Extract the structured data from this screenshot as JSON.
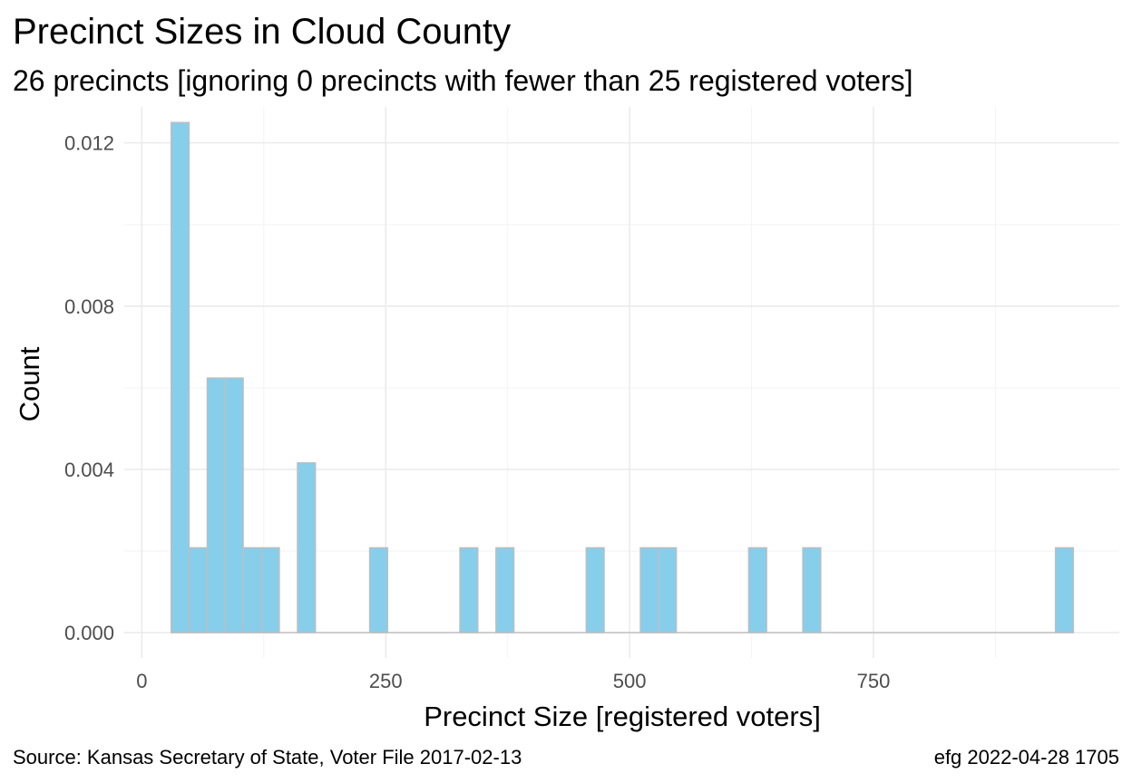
{
  "chart_data": {
    "type": "bar",
    "title": "Precinct Sizes in Cloud County",
    "subtitle": "26 precincts [ignoring 0 precincts with fewer than 25 registered voters]",
    "xlabel": "Precinct Size [registered voters]",
    "ylabel": "Count",
    "xlim": [
      -18,
      1002
    ],
    "ylim": [
      -0.00062,
      0.01288
    ],
    "x_ticks": [
      0,
      250,
      500,
      750
    ],
    "x_minor_ticks": [
      125,
      375,
      625,
      875
    ],
    "y_ticks": [
      0.0,
      0.004,
      0.008,
      0.012
    ],
    "y_tick_labels": [
      "0.000",
      "0.004",
      "0.008",
      "0.012"
    ],
    "y_minor_ticks": [
      0.002,
      0.006,
      0.01
    ],
    "grid": true,
    "bin_width": 18.5,
    "bins": [
      {
        "x0": 30.0,
        "x1": 48.5,
        "value": 0.0125
      },
      {
        "x0": 48.5,
        "x1": 67.0,
        "value": 0.00208
      },
      {
        "x0": 67.0,
        "x1": 85.5,
        "value": 0.00624
      },
      {
        "x0": 85.5,
        "x1": 104.0,
        "value": 0.00624
      },
      {
        "x0": 104.0,
        "x1": 122.5,
        "value": 0.00208
      },
      {
        "x0": 122.5,
        "x1": 141.0,
        "value": 0.00208
      },
      {
        "x0": 159.5,
        "x1": 178.0,
        "value": 0.00416
      },
      {
        "x0": 233.5,
        "x1": 252.0,
        "value": 0.00208
      },
      {
        "x0": 326.0,
        "x1": 344.5,
        "value": 0.00208
      },
      {
        "x0": 363.0,
        "x1": 381.5,
        "value": 0.00208
      },
      {
        "x0": 455.5,
        "x1": 474.0,
        "value": 0.00208
      },
      {
        "x0": 511.0,
        "x1": 529.5,
        "value": 0.00208
      },
      {
        "x0": 529.5,
        "x1": 548.0,
        "value": 0.00208
      },
      {
        "x0": 622.0,
        "x1": 640.5,
        "value": 0.00208
      },
      {
        "x0": 677.5,
        "x1": 696.0,
        "value": 0.00208
      },
      {
        "x0": 936.5,
        "x1": 955.0,
        "value": 0.00208
      }
    ],
    "colors": {
      "bar_fill": "#87ceeb",
      "bar_outline": "#bebebe"
    }
  },
  "caption": {
    "left": "Source:  Kansas Secretary of State, Voter File  2017-02-13",
    "right": "efg 2022-04-28 1705"
  }
}
